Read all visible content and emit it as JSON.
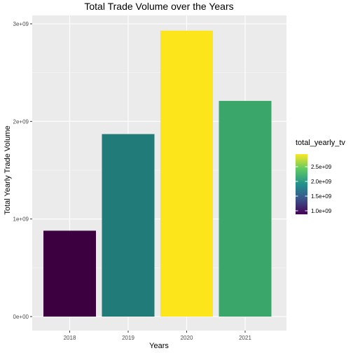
{
  "chart_data": {
    "type": "bar",
    "title": "Total Trade Volume over the Years",
    "xlabel": "Years",
    "ylabel": "Total Yearly Trade Volume",
    "categories": [
      "2018",
      "2019",
      "2020",
      "2021"
    ],
    "values": [
      880000000,
      1870000000,
      2930000000,
      2210000000
    ],
    "colors": [
      "#3c0040",
      "#217b79",
      "#fde51c",
      "#3aa669"
    ],
    "ylim": [
      0,
      3000000000
    ],
    "y_ticks": [
      0,
      1000000000,
      2000000000,
      3000000000
    ],
    "y_tick_labels": [
      "0e+00",
      "1e+09",
      "2e+09",
      "3e+09"
    ],
    "grid": true,
    "panel_background": "#ebebeb",
    "legend": {
      "title": "total_yearly_tv",
      "placement": "right",
      "range": [
        880000000,
        2930000000
      ],
      "tick_values": [
        1000000000,
        1500000000,
        2000000000,
        2500000000
      ],
      "tick_labels": [
        "1.0e+09",
        "1.5e+09",
        "2.0e+09",
        "2.5e+09"
      ],
      "gradient_colors": [
        "#440154",
        "#3b528b",
        "#21908d",
        "#5dc963",
        "#fde725"
      ]
    }
  }
}
